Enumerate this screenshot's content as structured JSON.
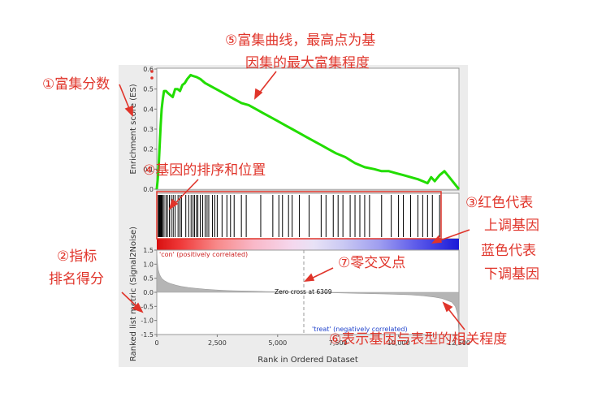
{
  "chart_data": [
    {
      "type": "line",
      "ylabel": "Enrichment score (ES)",
      "ylim": [
        0.0,
        0.6
      ],
      "yticks": [
        "0.6",
        "0.5",
        "0.4",
        "0.3",
        "0.2",
        "0.1",
        "0.0"
      ],
      "series": [
        {
          "x": [
            0,
            40,
            80,
            120,
            160,
            200,
            250,
            300,
            380,
            460,
            560,
            660,
            760,
            860,
            960,
            1060,
            1160,
            1260,
            1400,
            1500,
            1650,
            1800,
            2000,
            2300,
            2600,
            2900,
            3200,
            3500,
            3800,
            4100,
            4400,
            4700,
            5000,
            5300,
            5600,
            5900,
            6200,
            6500,
            6800,
            7100,
            7400,
            7800,
            8200,
            8600,
            9000,
            9300,
            9600,
            9900,
            10200,
            10500,
            10800,
            11000,
            11200,
            11350,
            11500,
            11700,
            11900,
            12100,
            12300,
            12500
          ],
          "y": [
            0.0,
            0.05,
            0.12,
            0.22,
            0.32,
            0.4,
            0.45,
            0.49,
            0.49,
            0.48,
            0.47,
            0.46,
            0.5,
            0.5,
            0.49,
            0.52,
            0.53,
            0.55,
            0.57,
            0.565,
            0.56,
            0.55,
            0.53,
            0.51,
            0.49,
            0.47,
            0.45,
            0.43,
            0.42,
            0.4,
            0.38,
            0.36,
            0.34,
            0.32,
            0.3,
            0.28,
            0.26,
            0.24,
            0.22,
            0.2,
            0.18,
            0.16,
            0.13,
            0.11,
            0.1,
            0.09,
            0.09,
            0.08,
            0.07,
            0.06,
            0.05,
            0.04,
            0.03,
            0.06,
            0.04,
            0.07,
            0.09,
            0.06,
            0.03,
            0.0
          ]
        }
      ],
      "color": "#22dd00"
    },
    {
      "type": "barcode",
      "hits": [
        60,
        90,
        120,
        160,
        200,
        240,
        300,
        380,
        440,
        520,
        600,
        680,
        760,
        880,
        960,
        1020,
        1200,
        1320,
        1420,
        1500,
        1560,
        1640,
        1700,
        1800,
        1900,
        2000,
        2080,
        2150,
        2300,
        2400,
        2500,
        2700,
        2900,
        3050,
        3200,
        3500,
        3700,
        4300,
        4800,
        5050,
        5200,
        5450,
        5600,
        5900,
        6300,
        6800,
        7000,
        7300,
        7500,
        7700,
        8000,
        8200,
        8400,
        8600,
        8800,
        9300,
        9700,
        10000,
        10200,
        10500,
        10800,
        11000,
        11200,
        11400,
        11700
      ]
    },
    {
      "type": "area",
      "ylabel": "Ranked list metric (Signal2Noise)",
      "xlabel": "Rank in Ordered Dataset",
      "xlim": [
        0,
        12500
      ],
      "xticks": [
        "0",
        "2,500",
        "5,000",
        "7,500",
        "10,000",
        "12,500"
      ],
      "ylim": [
        -1.5,
        1.5
      ],
      "yticks": [
        "1.5",
        "1.0",
        "0.5",
        "0.0",
        "-0.5",
        "-1.0",
        "-1.5"
      ],
      "x": [
        0,
        20,
        60,
        120,
        200,
        300,
        450,
        600,
        800,
        1000,
        1300,
        1600,
        2000,
        2500,
        3000,
        3500,
        4000,
        4500,
        5000,
        5500,
        6000,
        6309,
        6800,
        7500,
        8500,
        9500,
        10500,
        11000,
        11500,
        11800,
        12000,
        12200,
        12350,
        12450,
        12500
      ],
      "y": [
        1.5,
        1.1,
        0.8,
        0.62,
        0.5,
        0.42,
        0.35,
        0.3,
        0.25,
        0.21,
        0.17,
        0.14,
        0.11,
        0.08,
        0.06,
        0.05,
        0.04,
        0.03,
        0.02,
        0.01,
        0.005,
        0.0,
        -0.01,
        -0.02,
        -0.04,
        -0.06,
        -0.09,
        -0.12,
        -0.17,
        -0.22,
        -0.28,
        -0.35,
        -0.5,
        -0.8,
        -1.5
      ],
      "annotations": {
        "zero_cross": "Zero cross at 6309",
        "pos_label": "'con' (positively correlated)",
        "neg_label": "'treat' (negatively correlated)"
      }
    }
  ],
  "annotations_cn": {
    "a1": "①富集分数",
    "a2_line1": "②指标",
    "a2_line2": "排名得分",
    "a3_line1": "③红色代表",
    "a3_line2": "上调基因",
    "a3_line3": "蓝色代表",
    "a3_line4": "下调基因",
    "a4": "④基因的排序和位置",
    "a5_line1": "⑤富集曲线，最高点为基",
    "a5_line2": "因集的最大富集程度",
    "a6": "⑥表示基因与表型的相关程度",
    "a7": "⑦零交叉点"
  },
  "colors": {
    "annotation": "#e0342a",
    "curve": "#22dd00",
    "pos_label": "#cc2222",
    "neg_label": "#2244cc"
  }
}
